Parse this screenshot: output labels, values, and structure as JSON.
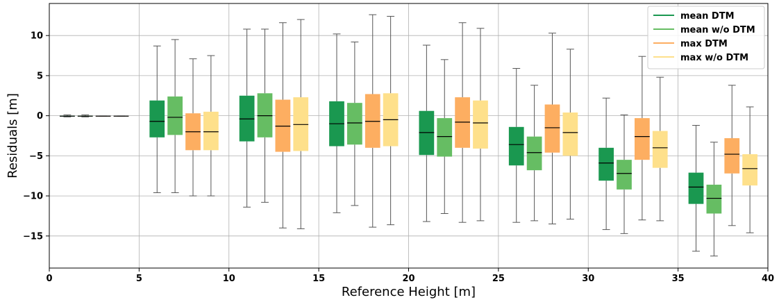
{
  "chart_data": {
    "type": "box",
    "xlabel": "Reference Height [m]",
    "ylabel": "Residuals [m]",
    "xlim": [
      0,
      40
    ],
    "ylim": [
      -19,
      14
    ],
    "x_ticks": [
      0,
      5,
      10,
      15,
      20,
      25,
      30,
      35,
      40
    ],
    "y_ticks": [
      -15,
      -10,
      -5,
      0,
      5,
      10
    ],
    "grid": true,
    "legend_position": "top-right",
    "series": [
      {
        "name": "mean DTM",
        "color": "#1a9850",
        "boxes": [
          {
            "x": 1,
            "whisker_low": -0.15,
            "q1": -0.1,
            "median": -0.05,
            "q3": 0.0,
            "whisker_high": 0.1
          },
          {
            "x": 6,
            "whisker_low": -9.6,
            "q1": -2.7,
            "median": -0.7,
            "q3": 1.9,
            "whisker_high": 8.7
          },
          {
            "x": 11,
            "whisker_low": -11.4,
            "q1": -3.2,
            "median": -0.4,
            "q3": 2.5,
            "whisker_high": 10.8
          },
          {
            "x": 16,
            "whisker_low": -12.1,
            "q1": -3.8,
            "median": -1.0,
            "q3": 1.8,
            "whisker_high": 10.2
          },
          {
            "x": 21,
            "whisker_low": -13.2,
            "q1": -4.9,
            "median": -2.1,
            "q3": 0.6,
            "whisker_high": 8.8
          },
          {
            "x": 26,
            "whisker_low": -13.3,
            "q1": -6.2,
            "median": -3.6,
            "q3": -1.4,
            "whisker_high": 5.9
          },
          {
            "x": 31,
            "whisker_low": -14.2,
            "q1": -8.1,
            "median": -5.9,
            "q3": -4.0,
            "whisker_high": 2.2
          },
          {
            "x": 36,
            "whisker_low": -16.9,
            "q1": -11.0,
            "median": -8.9,
            "q3": -7.1,
            "whisker_high": -1.2
          }
        ]
      },
      {
        "name": "mean w/o DTM",
        "color": "#66bd63",
        "boxes": [
          {
            "x": 2,
            "whisker_low": -0.15,
            "q1": -0.1,
            "median": -0.05,
            "q3": 0.0,
            "whisker_high": 0.1
          },
          {
            "x": 7,
            "whisker_low": -9.6,
            "q1": -2.4,
            "median": -0.2,
            "q3": 2.4,
            "whisker_high": 9.5
          },
          {
            "x": 12,
            "whisker_low": -10.8,
            "q1": -2.7,
            "median": 0.0,
            "q3": 2.8,
            "whisker_high": 10.8
          },
          {
            "x": 17,
            "whisker_low": -11.2,
            "q1": -3.6,
            "median": -0.9,
            "q3": 1.6,
            "whisker_high": 9.2
          },
          {
            "x": 22,
            "whisker_low": -12.2,
            "q1": -5.1,
            "median": -2.6,
            "q3": -0.3,
            "whisker_high": 7.0
          },
          {
            "x": 27,
            "whisker_low": -13.1,
            "q1": -6.8,
            "median": -4.6,
            "q3": -2.6,
            "whisker_high": 3.8
          },
          {
            "x": 32,
            "whisker_low": -14.7,
            "q1": -9.2,
            "median": -7.2,
            "q3": -5.5,
            "whisker_high": 0.1
          },
          {
            "x": 37,
            "whisker_low": -17.5,
            "q1": -12.2,
            "median": -10.3,
            "q3": -8.6,
            "whisker_high": -3.3
          }
        ]
      },
      {
        "name": "max DTM",
        "color": "#fdae61",
        "boxes": [
          {
            "x": 3,
            "whisker_low": -0.05,
            "q1": -0.05,
            "median": -0.05,
            "q3": -0.05,
            "whisker_high": -0.05
          },
          {
            "x": 8,
            "whisker_low": -10.0,
            "q1": -4.3,
            "median": -2.0,
            "q3": 0.3,
            "whisker_high": 7.1
          },
          {
            "x": 13,
            "whisker_low": -14.0,
            "q1": -4.5,
            "median": -1.3,
            "q3": 2.0,
            "whisker_high": 11.6
          },
          {
            "x": 18,
            "whisker_low": -13.9,
            "q1": -4.0,
            "median": -0.7,
            "q3": 2.7,
            "whisker_high": 12.6
          },
          {
            "x": 23,
            "whisker_low": -13.3,
            "q1": -4.0,
            "median": -0.8,
            "q3": 2.3,
            "whisker_high": 11.6
          },
          {
            "x": 28,
            "whisker_low": -13.5,
            "q1": -4.6,
            "median": -1.5,
            "q3": 1.4,
            "whisker_high": 10.3
          },
          {
            "x": 33,
            "whisker_low": -13.0,
            "q1": -5.5,
            "median": -2.6,
            "q3": -0.3,
            "whisker_high": 7.4
          },
          {
            "x": 38,
            "whisker_low": -13.7,
            "q1": -7.2,
            "median": -4.8,
            "q3": -2.8,
            "whisker_high": 3.8
          }
        ]
      },
      {
        "name": "max w/o DTM",
        "color": "#fee08b",
        "boxes": [
          {
            "x": 4,
            "whisker_low": -0.05,
            "q1": -0.05,
            "median": -0.05,
            "q3": -0.05,
            "whisker_high": -0.05
          },
          {
            "x": 9,
            "whisker_low": -10.0,
            "q1": -4.3,
            "median": -2.0,
            "q3": 0.5,
            "whisker_high": 7.5
          },
          {
            "x": 14,
            "whisker_low": -14.1,
            "q1": -4.4,
            "median": -1.1,
            "q3": 2.3,
            "whisker_high": 12.0
          },
          {
            "x": 19,
            "whisker_low": -13.6,
            "q1": -3.8,
            "median": -0.5,
            "q3": 2.8,
            "whisker_high": 12.4
          },
          {
            "x": 24,
            "whisker_low": -13.1,
            "q1": -4.1,
            "median": -0.9,
            "q3": 1.9,
            "whisker_high": 10.9
          },
          {
            "x": 29,
            "whisker_low": -12.9,
            "q1": -5.0,
            "median": -2.1,
            "q3": 0.4,
            "whisker_high": 8.3
          },
          {
            "x": 34,
            "whisker_low": -13.1,
            "q1": -6.5,
            "median": -4.0,
            "q3": -1.9,
            "whisker_high": 4.8
          },
          {
            "x": 39,
            "whisker_low": -14.6,
            "q1": -8.7,
            "median": -6.6,
            "q3": -4.8,
            "whisker_high": 1.1
          }
        ]
      }
    ]
  }
}
